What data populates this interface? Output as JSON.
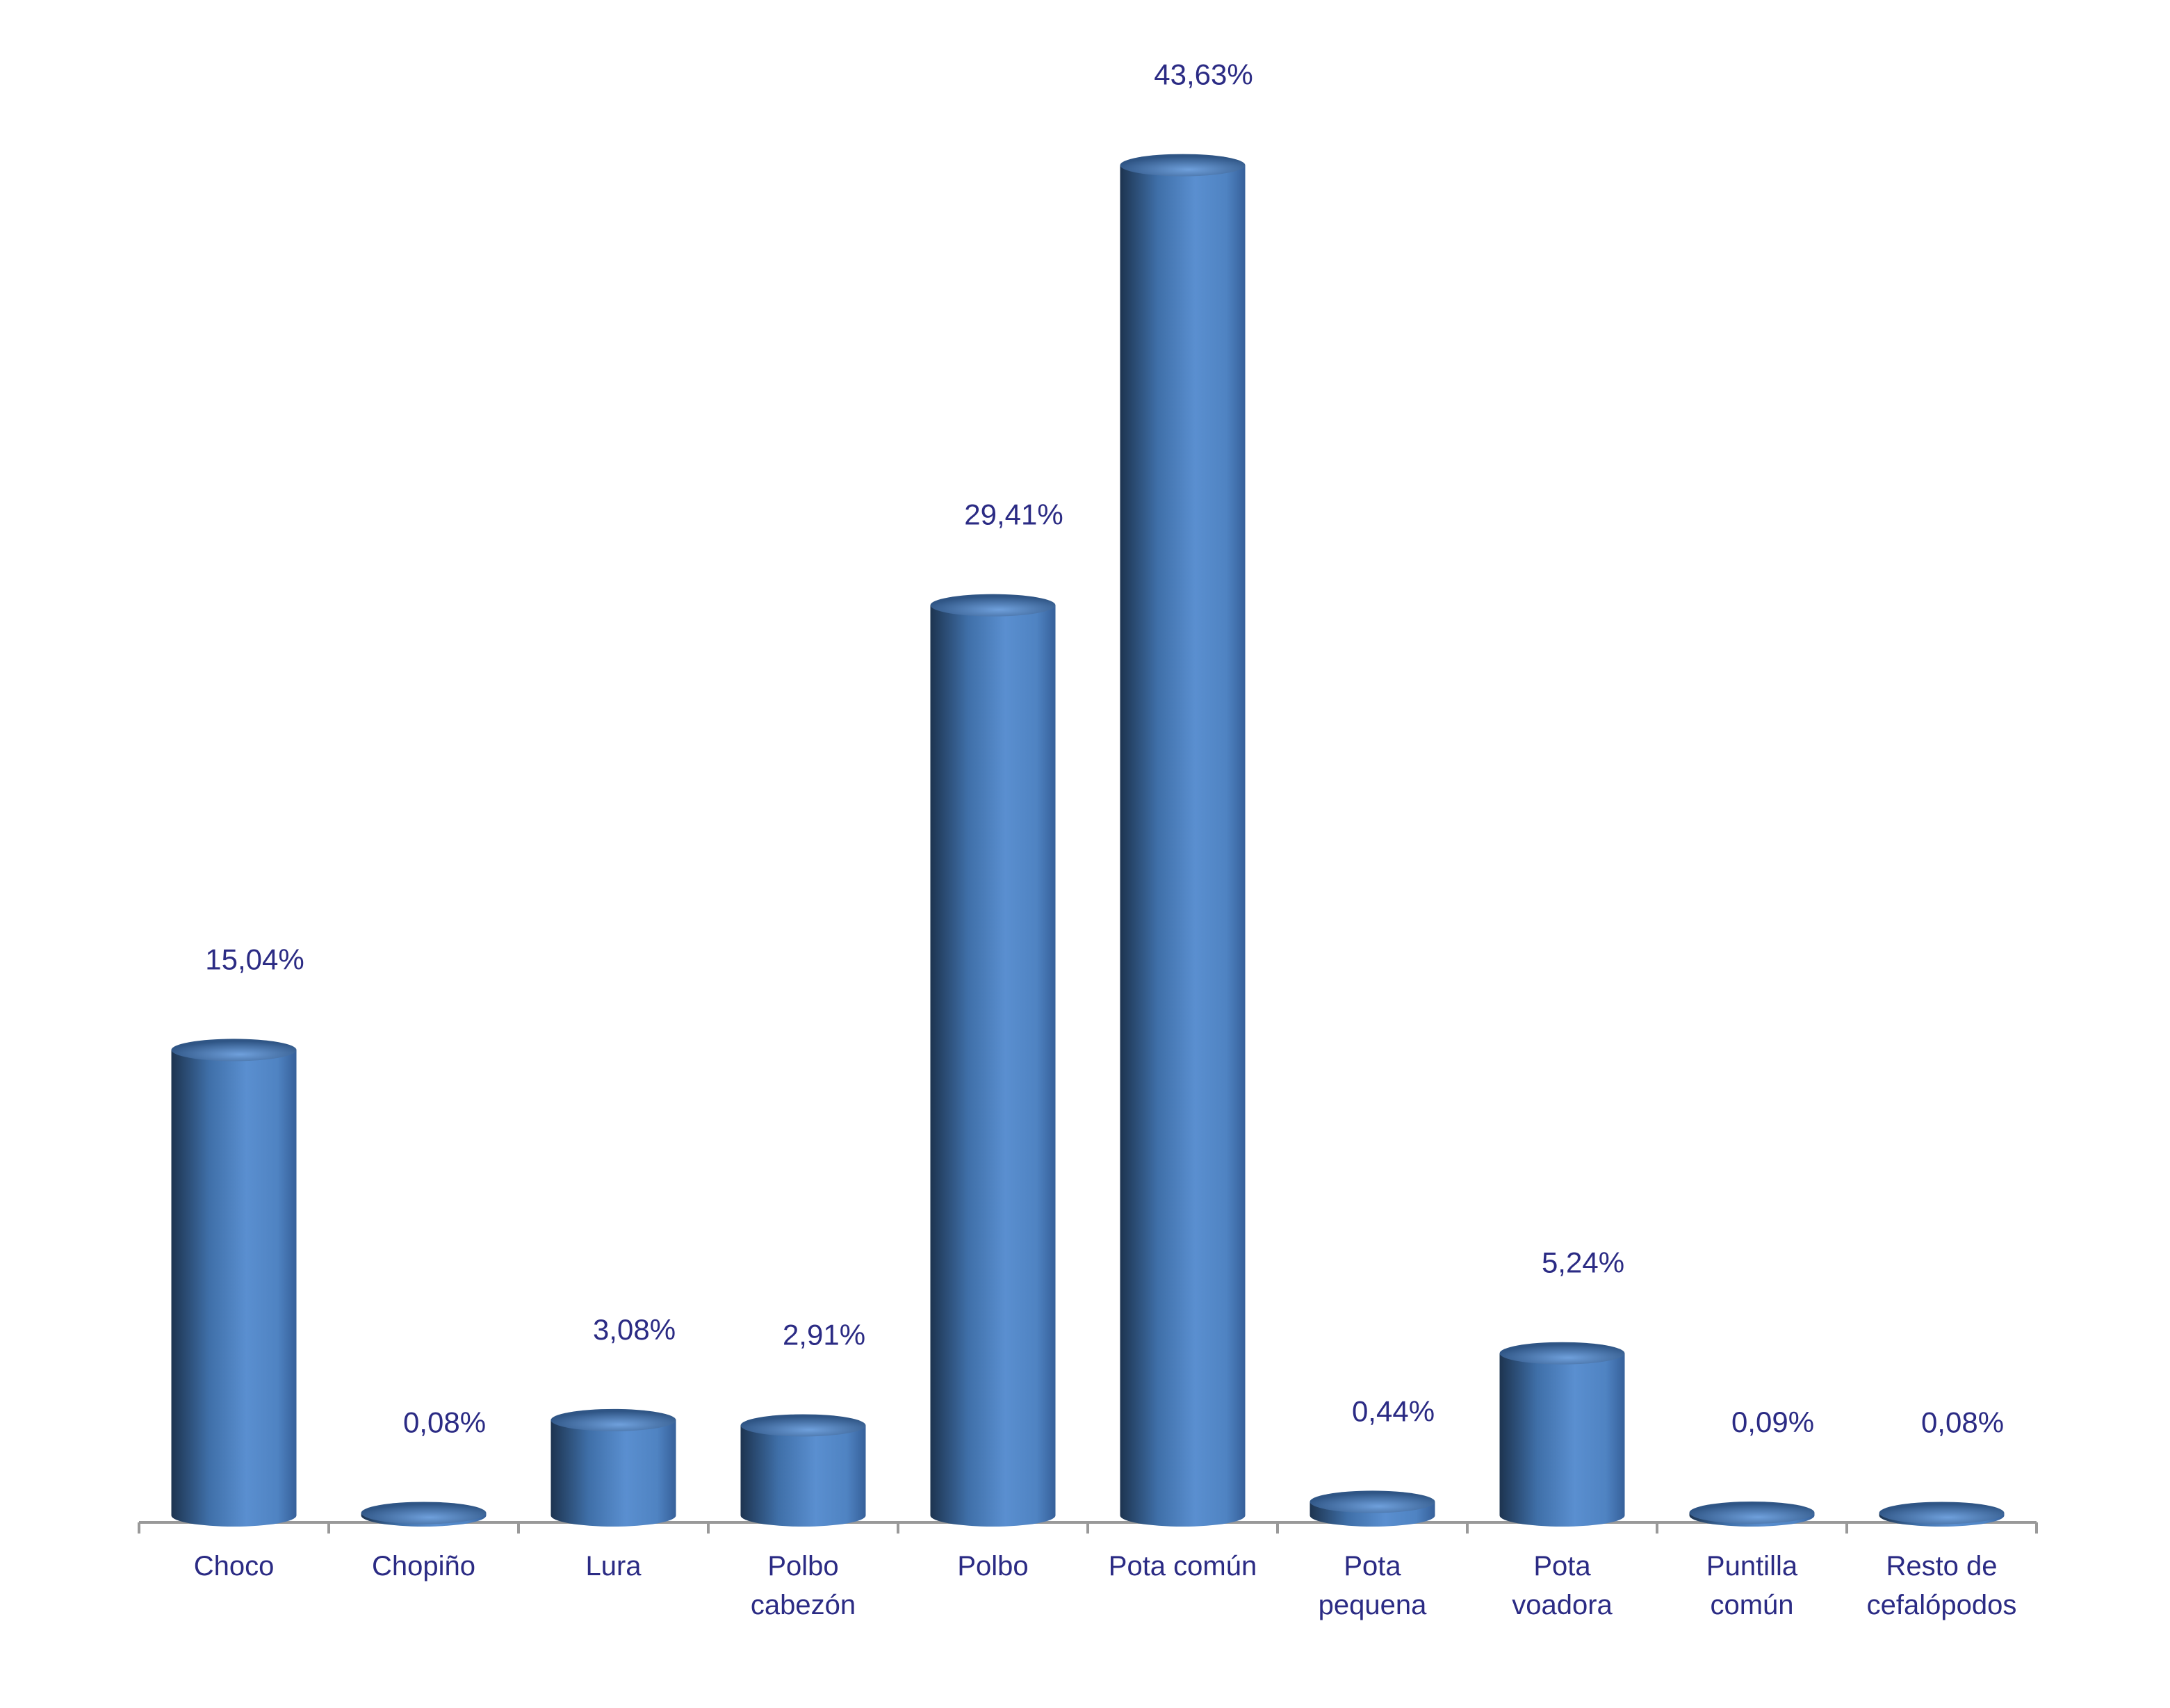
{
  "chart_data": {
    "type": "bar",
    "categories": [
      "Choco",
      "Chopiño",
      "Lura",
      "Polbo cabezón",
      "Polbo",
      "Pota común",
      "Pota pequena",
      "Pota voadora",
      "Puntilla común",
      "Resto de cefalópodos"
    ],
    "values": [
      15.04,
      0.08,
      3.08,
      2.91,
      29.41,
      43.63,
      0.44,
      5.24,
      0.09,
      0.08
    ],
    "value_labels": [
      "15,04%",
      "0,08%",
      "3,08%",
      "2,91%",
      "29,41%",
      "43,63%",
      "0,44%",
      "5,24%",
      "0,09%",
      "0,08%"
    ],
    "color": "#4f81bd"
  }
}
